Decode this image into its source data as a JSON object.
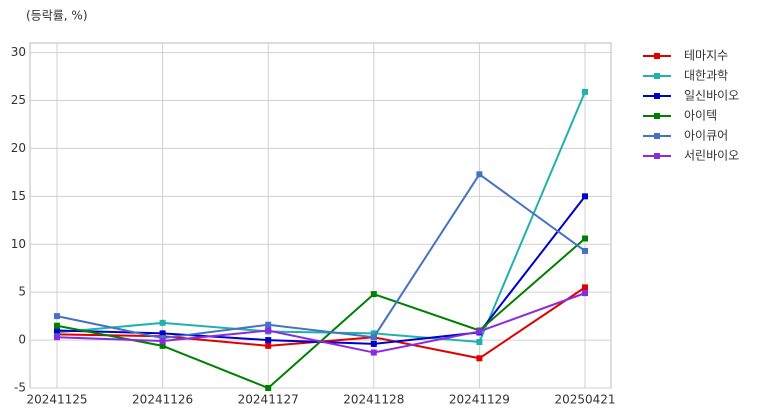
{
  "chart_data": {
    "type": "line",
    "title": "(등락률, %)",
    "categories": [
      "20241125",
      "20241126",
      "20241127",
      "20241128",
      "20241129",
      "20250421"
    ],
    "series": [
      {
        "name": "테마지수",
        "color": "#e00000",
        "values": [
          0.6,
          0.4,
          -0.6,
          0.3,
          -1.9,
          5.5
        ]
      },
      {
        "name": "대한과학",
        "color": "#20b2aa",
        "values": [
          0.8,
          1.8,
          0.9,
          0.7,
          -0.2,
          25.9
        ]
      },
      {
        "name": "일신바이오",
        "color": "#0000cc",
        "values": [
          1.0,
          0.7,
          0.0,
          -0.4,
          0.8,
          15.0
        ]
      },
      {
        "name": "아이텍",
        "color": "#008000",
        "values": [
          1.5,
          -0.6,
          -5.0,
          4.8,
          1.0,
          10.6
        ]
      },
      {
        "name": "아이큐어",
        "color": "#4472c4",
        "values": [
          2.5,
          0.2,
          1.6,
          0.3,
          17.3,
          9.3
        ]
      },
      {
        "name": "서린바이오",
        "color": "#8a2be2",
        "values": [
          0.3,
          -0.1,
          1.0,
          -1.3,
          0.9,
          4.9
        ]
      }
    ],
    "ylim": [
      -5,
      31
    ],
    "yticks": [
      -5,
      0,
      5,
      10,
      15,
      20,
      25,
      30
    ],
    "grid": true,
    "legend": "right"
  }
}
